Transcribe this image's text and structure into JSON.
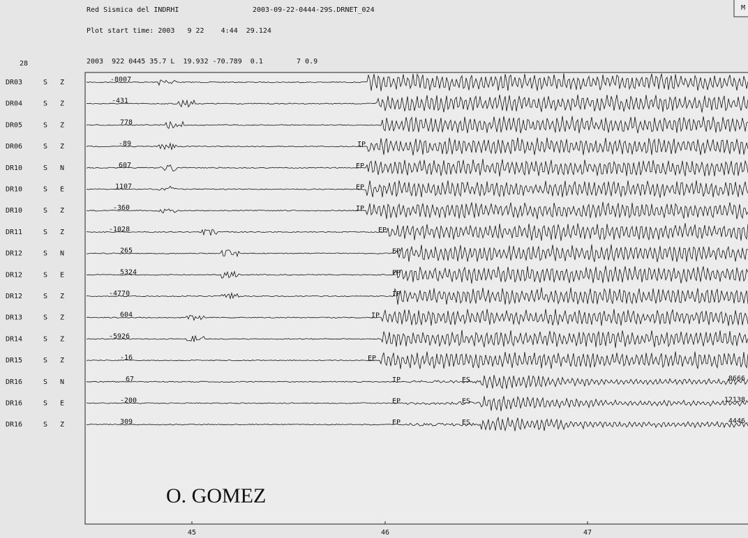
{
  "header": {
    "network": "Red Sismica del INDRHI",
    "file": "2003-09-22-0444-29S.DRNET_024",
    "plot_start": "Plot start time: 2003   9 22    4:44  29.124",
    "corner": "M",
    "event_number": "28",
    "event_line": "2003  922 0445 35.7 L  19.932 -70.789  0.1        7 0.9"
  },
  "traces": [
    {
      "station": "DR03",
      "type": "S",
      "component": "Z",
      "amplitude": "-8007",
      "phases": []
    },
    {
      "station": "DR04",
      "type": "S",
      "component": "Z",
      "amplitude": "-431",
      "phases": []
    },
    {
      "station": "DR05",
      "type": "S",
      "component": "Z",
      "amplitude": "778",
      "phases": []
    },
    {
      "station": "DR06",
      "type": "S",
      "component": "Z",
      "amplitude": "-89",
      "phases": [
        "IP"
      ]
    },
    {
      "station": "DR10",
      "type": "S",
      "component": "N",
      "amplitude": "607",
      "phases": [
        "EP"
      ]
    },
    {
      "station": "DR10",
      "type": "S",
      "component": "E",
      "amplitude": "1107",
      "phases": [
        "EP"
      ]
    },
    {
      "station": "DR10",
      "type": "S",
      "component": "Z",
      "amplitude": "-360",
      "phases": [
        "IP"
      ]
    },
    {
      "station": "DR11",
      "type": "S",
      "component": "Z",
      "amplitude": "-1028",
      "phases": [
        "EP"
      ]
    },
    {
      "station": "DR12",
      "type": "S",
      "component": "N",
      "amplitude": "265",
      "phases": [
        "EP"
      ]
    },
    {
      "station": "DR12",
      "type": "S",
      "component": "E",
      "amplitude": "5324",
      "phases": [
        "EP"
      ]
    },
    {
      "station": "DR12",
      "type": "S",
      "component": "Z",
      "amplitude": "-4770",
      "phases": [
        "IP"
      ]
    },
    {
      "station": "DR13",
      "type": "S",
      "component": "Z",
      "amplitude": "604",
      "phases": [
        "IP"
      ]
    },
    {
      "station": "DR14",
      "type": "S",
      "component": "Z",
      "amplitude": "-5926",
      "phases": []
    },
    {
      "station": "DR15",
      "type": "S",
      "component": "Z",
      "amplitude": "-16",
      "phases": [
        "EP"
      ]
    },
    {
      "station": "DR16",
      "type": "S",
      "component": "N",
      "amplitude": "67",
      "phases": [
        "IP",
        "ES"
      ],
      "max": "8666"
    },
    {
      "station": "DR16",
      "type": "S",
      "component": "E",
      "amplitude": "-200",
      "phases": [
        "EP",
        "ES"
      ],
      "max": "12138"
    },
    {
      "station": "DR16",
      "type": "S",
      "component": "Z",
      "amplitude": "309",
      "phases": [
        "EP",
        "ES"
      ],
      "max": "4446"
    }
  ],
  "x_axis": {
    "labels": [
      "45",
      "46",
      "47"
    ]
  },
  "watermark": "O. GOMEZ"
}
